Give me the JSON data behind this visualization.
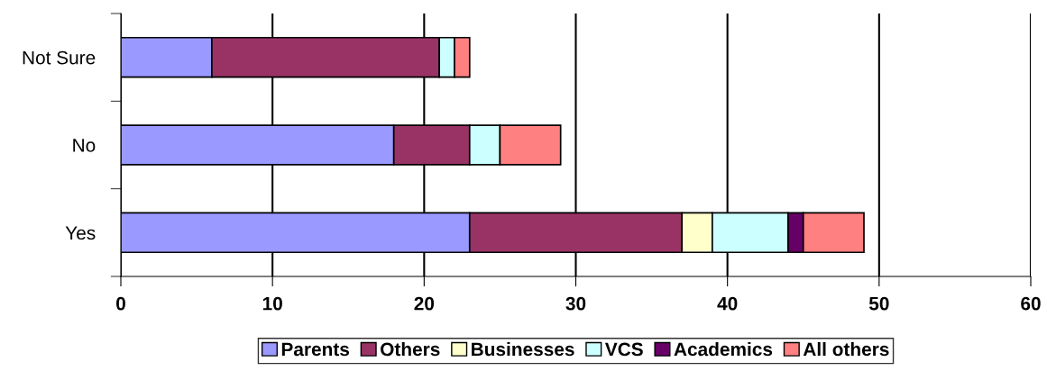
{
  "chart_data": {
    "type": "bar",
    "orientation": "horizontal",
    "stacked": true,
    "categories": [
      "Not Sure",
      "No",
      "Yes"
    ],
    "series": [
      {
        "name": "Parents",
        "color": "#9999ff",
        "values": [
          6,
          18,
          23
        ]
      },
      {
        "name": "Others",
        "color": "#993366",
        "values": [
          15,
          5,
          14
        ]
      },
      {
        "name": "Businesses",
        "color": "#ffffcc",
        "values": [
          null,
          null,
          2
        ]
      },
      {
        "name": "VCS",
        "color": "#ccffff",
        "values": [
          1,
          2,
          5
        ]
      },
      {
        "name": "Academics",
        "color": "#660066",
        "values": [
          null,
          null,
          1
        ]
      },
      {
        "name": "All others",
        "color": "#ff8080",
        "values": [
          1,
          4,
          4
        ]
      }
    ],
    "xlim": [
      0,
      60
    ],
    "xticks": [
      0,
      10,
      20,
      30,
      40,
      50,
      60
    ],
    "grid": "x",
    "legend": "bottom"
  }
}
